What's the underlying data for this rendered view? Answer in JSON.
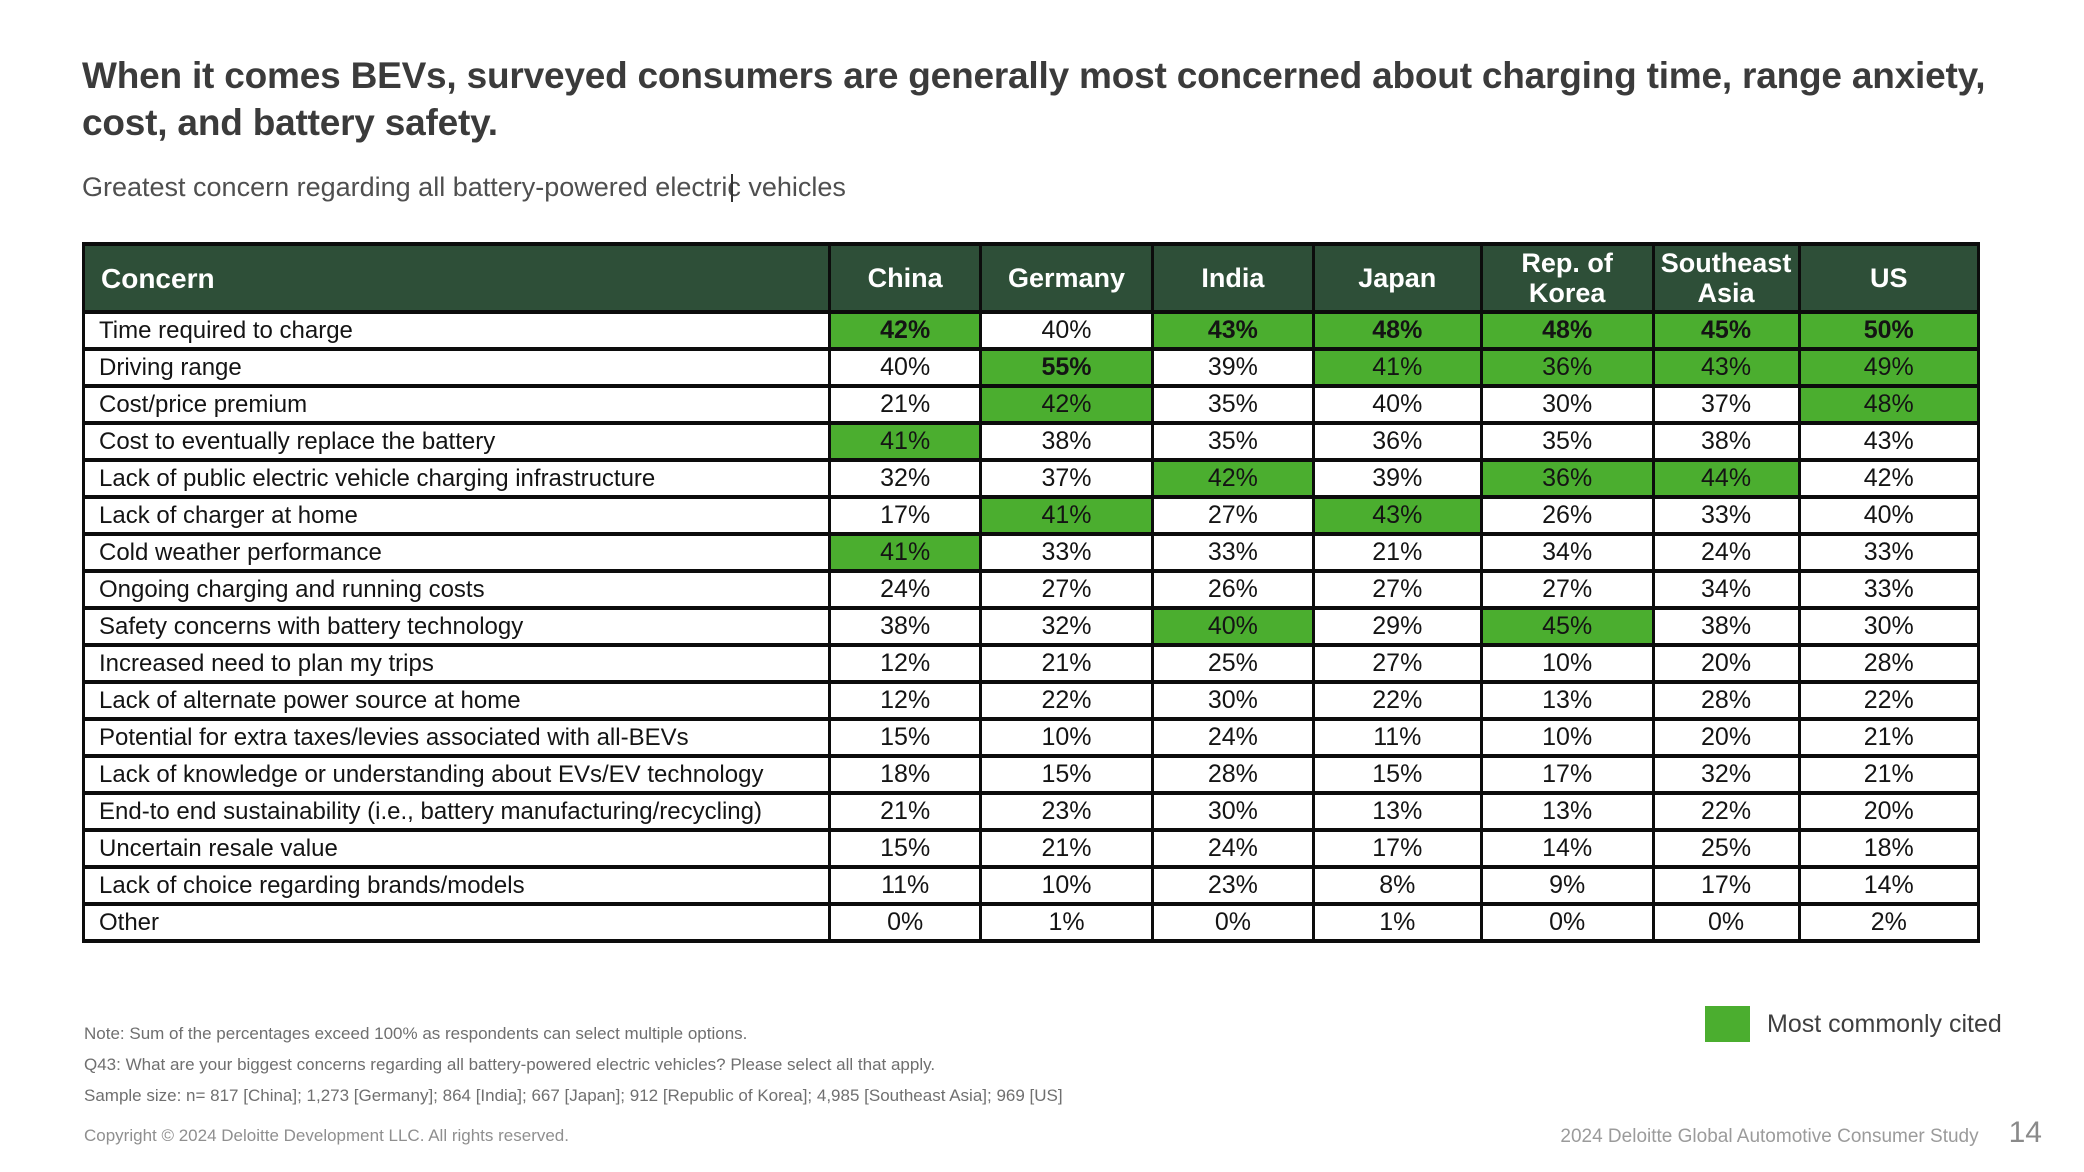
{
  "header": {
    "title": "When it comes BEVs, surveyed consumers are generally most concerned about charging time, range anxiety, cost, and battery safety.",
    "subtitle": "Greatest concern regarding all battery-powered electric vehicles"
  },
  "colors": {
    "highlight_green": "#4bae2f",
    "header_green": "#2e4f38"
  },
  "table": {
    "concern_header": "Concern",
    "countries": [
      "China",
      "Germany",
      "India",
      "Japan",
      "Rep. of Korea",
      "Southeast Asia",
      "US"
    ],
    "rows": [
      {
        "label": "Time required to charge",
        "values": [
          "42%",
          "40%",
          "43%",
          "48%",
          "48%",
          "45%",
          "50%"
        ],
        "highlight": [
          1,
          0,
          1,
          1,
          1,
          1,
          1
        ],
        "bold": [
          1,
          0,
          1,
          1,
          1,
          1,
          1
        ]
      },
      {
        "label": "Driving range",
        "values": [
          "40%",
          "55%",
          "39%",
          "41%",
          "36%",
          "43%",
          "49%"
        ],
        "highlight": [
          0,
          1,
          0,
          1,
          1,
          1,
          1
        ],
        "bold": [
          0,
          1,
          0,
          0,
          0,
          0,
          0
        ]
      },
      {
        "label": "Cost/price premium",
        "values": [
          "21%",
          "42%",
          "35%",
          "40%",
          "30%",
          "37%",
          "48%"
        ],
        "highlight": [
          0,
          1,
          0,
          0,
          0,
          0,
          1
        ],
        "bold": [
          0,
          0,
          0,
          0,
          0,
          0,
          0
        ]
      },
      {
        "label": "Cost to eventually replace the battery",
        "values": [
          "41%",
          "38%",
          "35%",
          "36%",
          "35%",
          "38%",
          "43%"
        ],
        "highlight": [
          1,
          0,
          0,
          0,
          0,
          0,
          0
        ],
        "bold": [
          0,
          0,
          0,
          0,
          0,
          0,
          0
        ]
      },
      {
        "label": "Lack of public electric vehicle charging infrastructure",
        "values": [
          "32%",
          "37%",
          "42%",
          "39%",
          "36%",
          "44%",
          "42%"
        ],
        "highlight": [
          0,
          0,
          1,
          0,
          1,
          1,
          0
        ],
        "bold": [
          0,
          0,
          0,
          0,
          0,
          0,
          0
        ]
      },
      {
        "label": "Lack of charger at home",
        "values": [
          "17%",
          "41%",
          "27%",
          "43%",
          "26%",
          "33%",
          "40%"
        ],
        "highlight": [
          0,
          1,
          0,
          1,
          0,
          0,
          0
        ],
        "bold": [
          0,
          0,
          0,
          0,
          0,
          0,
          0
        ]
      },
      {
        "label": "Cold weather performance",
        "values": [
          "41%",
          "33%",
          "33%",
          "21%",
          "34%",
          "24%",
          "33%"
        ],
        "highlight": [
          1,
          0,
          0,
          0,
          0,
          0,
          0
        ],
        "bold": [
          0,
          0,
          0,
          0,
          0,
          0,
          0
        ]
      },
      {
        "label": "Ongoing charging and running costs",
        "values": [
          "24%",
          "27%",
          "26%",
          "27%",
          "27%",
          "34%",
          "33%"
        ],
        "highlight": [
          0,
          0,
          0,
          0,
          0,
          0,
          0
        ],
        "bold": [
          0,
          0,
          0,
          0,
          0,
          0,
          0
        ]
      },
      {
        "label": "Safety concerns with battery technology",
        "values": [
          "38%",
          "32%",
          "40%",
          "29%",
          "45%",
          "38%",
          "30%"
        ],
        "highlight": [
          0,
          0,
          1,
          0,
          1,
          0,
          0
        ],
        "bold": [
          0,
          0,
          0,
          0,
          0,
          0,
          0
        ]
      },
      {
        "label": "Increased need to plan my trips",
        "values": [
          "12%",
          "21%",
          "25%",
          "27%",
          "10%",
          "20%",
          "28%"
        ],
        "highlight": [
          0,
          0,
          0,
          0,
          0,
          0,
          0
        ],
        "bold": [
          0,
          0,
          0,
          0,
          0,
          0,
          0
        ]
      },
      {
        "label": "Lack of alternate power source at home",
        "values": [
          "12%",
          "22%",
          "30%",
          "22%",
          "13%",
          "28%",
          "22%"
        ],
        "highlight": [
          0,
          0,
          0,
          0,
          0,
          0,
          0
        ],
        "bold": [
          0,
          0,
          0,
          0,
          0,
          0,
          0
        ]
      },
      {
        "label": "Potential for extra taxes/levies associated with all-BEVs",
        "values": [
          "15%",
          "10%",
          "24%",
          "11%",
          "10%",
          "20%",
          "21%"
        ],
        "highlight": [
          0,
          0,
          0,
          0,
          0,
          0,
          0
        ],
        "bold": [
          0,
          0,
          0,
          0,
          0,
          0,
          0
        ]
      },
      {
        "label": "Lack of knowledge or understanding about EVs/EV technology",
        "values": [
          "18%",
          "15%",
          "28%",
          "15%",
          "17%",
          "32%",
          "21%"
        ],
        "highlight": [
          0,
          0,
          0,
          0,
          0,
          0,
          0
        ],
        "bold": [
          0,
          0,
          0,
          0,
          0,
          0,
          0
        ]
      },
      {
        "label": "End-to end sustainability (i.e., battery manufacturing/recycling)",
        "values": [
          "21%",
          "23%",
          "30%",
          "13%",
          "13%",
          "22%",
          "20%"
        ],
        "highlight": [
          0,
          0,
          0,
          0,
          0,
          0,
          0
        ],
        "bold": [
          0,
          0,
          0,
          0,
          0,
          0,
          0
        ]
      },
      {
        "label": "Uncertain resale value",
        "values": [
          "15%",
          "21%",
          "24%",
          "17%",
          "14%",
          "25%",
          "18%"
        ],
        "highlight": [
          0,
          0,
          0,
          0,
          0,
          0,
          0
        ],
        "bold": [
          0,
          0,
          0,
          0,
          0,
          0,
          0
        ]
      },
      {
        "label": "Lack of choice regarding brands/models",
        "values": [
          "11%",
          "10%",
          "23%",
          "8%",
          "9%",
          "17%",
          "14%"
        ],
        "highlight": [
          0,
          0,
          0,
          0,
          0,
          0,
          0
        ],
        "bold": [
          0,
          0,
          0,
          0,
          0,
          0,
          0
        ]
      },
      {
        "label": "Other",
        "values": [
          "0%",
          "1%",
          "0%",
          "1%",
          "0%",
          "0%",
          "2%"
        ],
        "highlight": [
          0,
          0,
          0,
          0,
          0,
          0,
          0
        ],
        "bold": [
          0,
          0,
          0,
          0,
          0,
          0,
          0
        ]
      }
    ]
  },
  "legend": {
    "label": "Most commonly cited"
  },
  "footnotes": {
    "note": "Note: Sum of the percentages exceed 100% as respondents can select multiple options.",
    "question": "Q43: What are your biggest concerns regarding all battery-powered electric vehicles? Please select all that apply.",
    "sample_size": "Sample size: n= 817 [China]; 1,273 [Germany]; 864 [India]; 667 [Japan]; 912 [Republic of Korea]; 4,985 [Southeast Asia]; 969 [US]"
  },
  "footer": {
    "copyright": "Copyright © 2024 Deloitte Development LLC. All rights reserved.",
    "study": "2024 Deloitte Global Automotive Consumer Study",
    "page": "14"
  }
}
